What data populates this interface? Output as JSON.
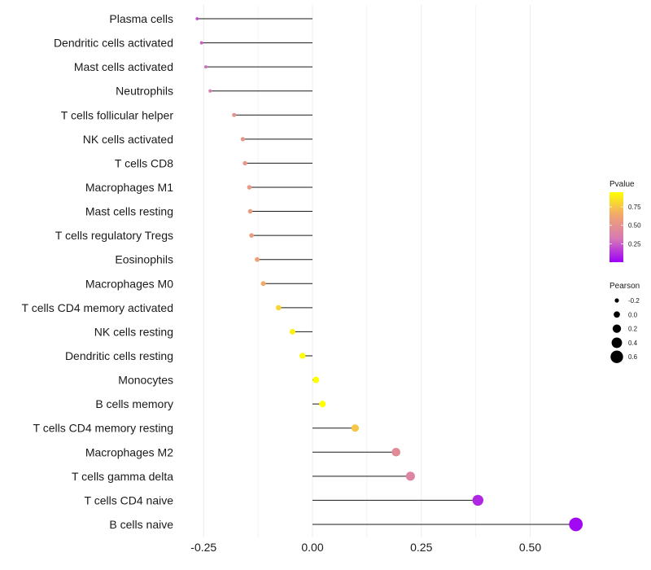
{
  "chart_data": {
    "type": "lollipop",
    "title": "",
    "xlabel": "",
    "ylabel": "",
    "xlim": [
      -0.25,
      0.61
    ],
    "x_ticks": [
      -0.25,
      0.0,
      0.25,
      0.5
    ],
    "x_tick_labels": [
      "-0.25",
      "0.00",
      "0.25",
      "0.50"
    ],
    "grid": true,
    "categories": [
      "Plasma cells",
      "Dendritic cells activated",
      "Mast cells activated",
      "Neutrophils",
      "T cells follicular helper",
      "NK cells activated",
      "T cells CD8",
      "Macrophages M1",
      "Mast cells resting",
      "T cells regulatory  Tregs ",
      "Eosinophils",
      "Macrophages M0",
      "T cells CD4 memory activated",
      "NK cells resting",
      "Dendritic cells resting",
      "Monocytes",
      "B cells memory",
      "T cells CD4 memory resting",
      "Macrophages M2",
      "T cells gamma delta",
      "T cells CD4 naive",
      "B cells naive"
    ],
    "pearson": [
      -0.265,
      -0.255,
      -0.245,
      -0.235,
      -0.18,
      -0.16,
      -0.155,
      -0.145,
      -0.143,
      -0.14,
      -0.127,
      -0.113,
      -0.078,
      -0.046,
      -0.023,
      0.008,
      0.023,
      0.098,
      0.192,
      0.225,
      0.38,
      0.605
    ],
    "pvalue": [
      0.2,
      0.25,
      0.3,
      0.35,
      0.5,
      0.52,
      0.53,
      0.55,
      0.56,
      0.57,
      0.6,
      0.65,
      0.8,
      0.9,
      0.95,
      0.97,
      0.96,
      0.75,
      0.45,
      0.4,
      0.1,
      0.02
    ],
    "legend": {
      "position": "right",
      "color_title": "Pvalue",
      "color_breaks": [
        "0.75",
        "0.50",
        "0.25"
      ],
      "color_break_values": [
        0.75,
        0.5,
        0.25
      ],
      "color_range": [
        0.0,
        0.95
      ],
      "colors": [
        "#9d00f8",
        "#d678b6",
        "#f1a56f",
        "#ffff00"
      ],
      "size_title": "Pearson",
      "size_breaks": [
        "-0.2",
        "0.0",
        "0.2",
        "0.4",
        "0.6"
      ],
      "size_break_values": [
        -0.2,
        0.0,
        0.2,
        0.4,
        0.6
      ]
    }
  }
}
